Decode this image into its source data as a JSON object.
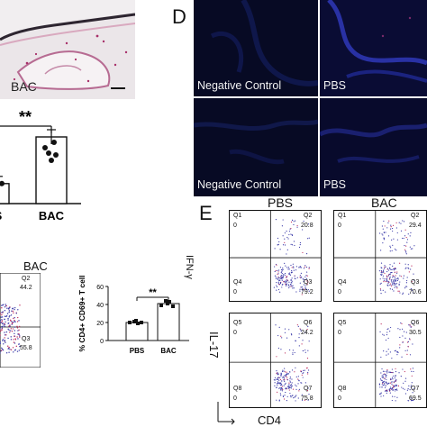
{
  "panel_labels": {
    "d": "D",
    "e": "E"
  },
  "histology": {
    "label": "BAC"
  },
  "fluorescence": {
    "tiles": [
      {
        "label": "Negative Control"
      },
      {
        "label": "PBS"
      },
      {
        "label": "Negative Control"
      },
      {
        "label": "PBS"
      }
    ]
  },
  "colors": {
    "fluor_bg": "#070a24",
    "dot_blue": "#3a3aa8",
    "stain": "#b0306a",
    "accent": "#000000"
  },
  "chart_b": {
    "significance": "**",
    "categories_visible": [
      "S",
      "BAC"
    ]
  },
  "flow_c": {
    "title": "BAC",
    "quadrants": {
      "q2": {
        "name": "Q2",
        "value": "44.2"
      },
      "q3": {
        "name": "Q3",
        "value": "55.8"
      }
    }
  },
  "chart_data": [
    {
      "type": "bar",
      "categories": [
        "S",
        "BAC"
      ],
      "values": [
        0.3,
        1.0
      ],
      "significance": "**"
    },
    {
      "type": "bar",
      "categories": [
        "PBS",
        "BAC"
      ],
      "values": [
        20,
        41
      ],
      "ylabel": "% CD4+ CD69+ T cell",
      "ylim": [
        0,
        60
      ],
      "yticks": [
        "0",
        "20",
        "40",
        "60"
      ],
      "significance": "**"
    }
  ],
  "chart_c": {
    "ylabel": "% CD4+ CD69+ T cell",
    "yticks": [
      "0",
      "20",
      "40",
      "60"
    ],
    "categories": [
      "PBS",
      "BAC"
    ],
    "significance": "**"
  },
  "flow_e": {
    "col_titles": [
      "PBS",
      "BAC"
    ],
    "row_labels": [
      "IFN-γ",
      "IL-17"
    ],
    "xlabel": "CD4",
    "plots": [
      {
        "q1": "Q1",
        "q1v": "0",
        "q2": "Q2",
        "q2v": "20.8",
        "q3": "Q3",
        "q3v": "79.2",
        "q4": "Q4",
        "q4v": "0"
      },
      {
        "q1": "Q1",
        "q1v": "0",
        "q2": "Q2",
        "q2v": "29.4",
        "q3": "Q3",
        "q3v": "70.6",
        "q4": "Q4",
        "q4v": "0"
      },
      {
        "q1": "Q5",
        "q1v": "0",
        "q2": "Q6",
        "q2v": "24.2",
        "q3": "Q7",
        "q3v": "75.8",
        "q4": "Q8",
        "q4v": "0"
      },
      {
        "q1": "Q5",
        "q1v": "0",
        "q2": "Q6",
        "q2v": "30.5",
        "q3": "Q7",
        "q3v": "69.5",
        "q4": "Q8",
        "q4v": "0"
      }
    ]
  }
}
